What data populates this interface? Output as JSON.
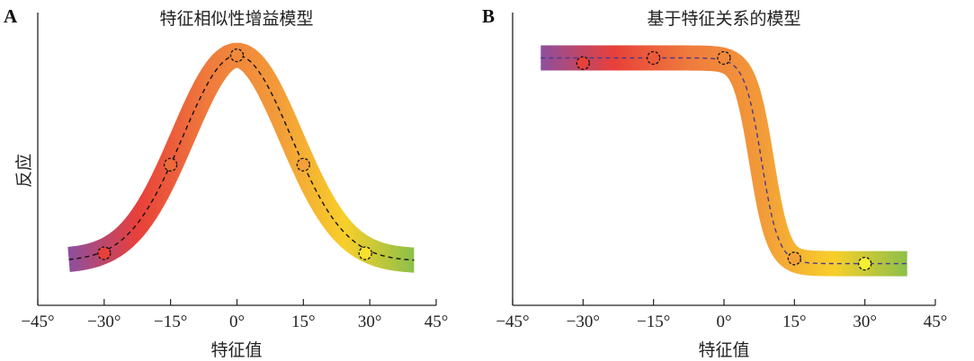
{
  "chart_data": [
    {
      "type": "line",
      "panel": "A",
      "title": "特征相似性增益模型",
      "xlabel": "特征值",
      "ylabel": "反应",
      "xlim": [
        -45,
        45
      ],
      "ylim": [
        0,
        1
      ],
      "xticks": [
        "−45°",
        "−30°",
        "−15°",
        "0°",
        "15°",
        "30°",
        "45°"
      ],
      "xtick_values": [
        -45,
        -30,
        -15,
        0,
        15,
        30,
        45
      ],
      "curve": {
        "model": "gaussian",
        "x_range": [
          -38,
          40
        ],
        "baseline": 0.17,
        "amplitude": 0.79,
        "center": 0,
        "sigma": 12.2
      },
      "points": {
        "x": [
          -30,
          -15,
          0,
          15,
          29
        ],
        "y": [
          0.2,
          0.54,
          0.96,
          0.54,
          0.2
        ]
      },
      "point_colors": [
        "#e8403a",
        "#ee6a3a",
        "#f08a3a",
        "#f3a03a",
        "#f7e030"
      ]
    },
    {
      "type": "line",
      "panel": "B",
      "title": "基于特征关系的模型",
      "xlabel": "特征值",
      "ylabel": "",
      "xlim": [
        -45,
        45
      ],
      "ylim": [
        0,
        1
      ],
      "xticks": [
        "−45°",
        "−30°",
        "−15°",
        "0°",
        "15°",
        "30°",
        "45°"
      ],
      "xtick_values": [
        -45,
        -30,
        -15,
        0,
        15,
        30,
        45
      ],
      "curve": {
        "model": "sigmoid",
        "x_range": [
          -39,
          39
        ],
        "high": 0.95,
        "low": 0.16,
        "center": 8,
        "slope": 0.55
      },
      "points": {
        "x": [
          -30,
          -15,
          0,
          15,
          30
        ],
        "y": [
          0.93,
          0.95,
          0.95,
          0.18,
          0.16
        ]
      },
      "point_colors": [
        "#e8403a",
        "#ec5a3a",
        "#f08a3a",
        "#f4a038",
        "#f7f030"
      ]
    }
  ],
  "colors": {
    "gradient": [
      "#8e4f9e",
      "#e8403a",
      "#ef7a3c",
      "#f29a3a",
      "#f8cf2a",
      "#8cc04a"
    ],
    "axis": "#222222",
    "dash": "#111111"
  }
}
